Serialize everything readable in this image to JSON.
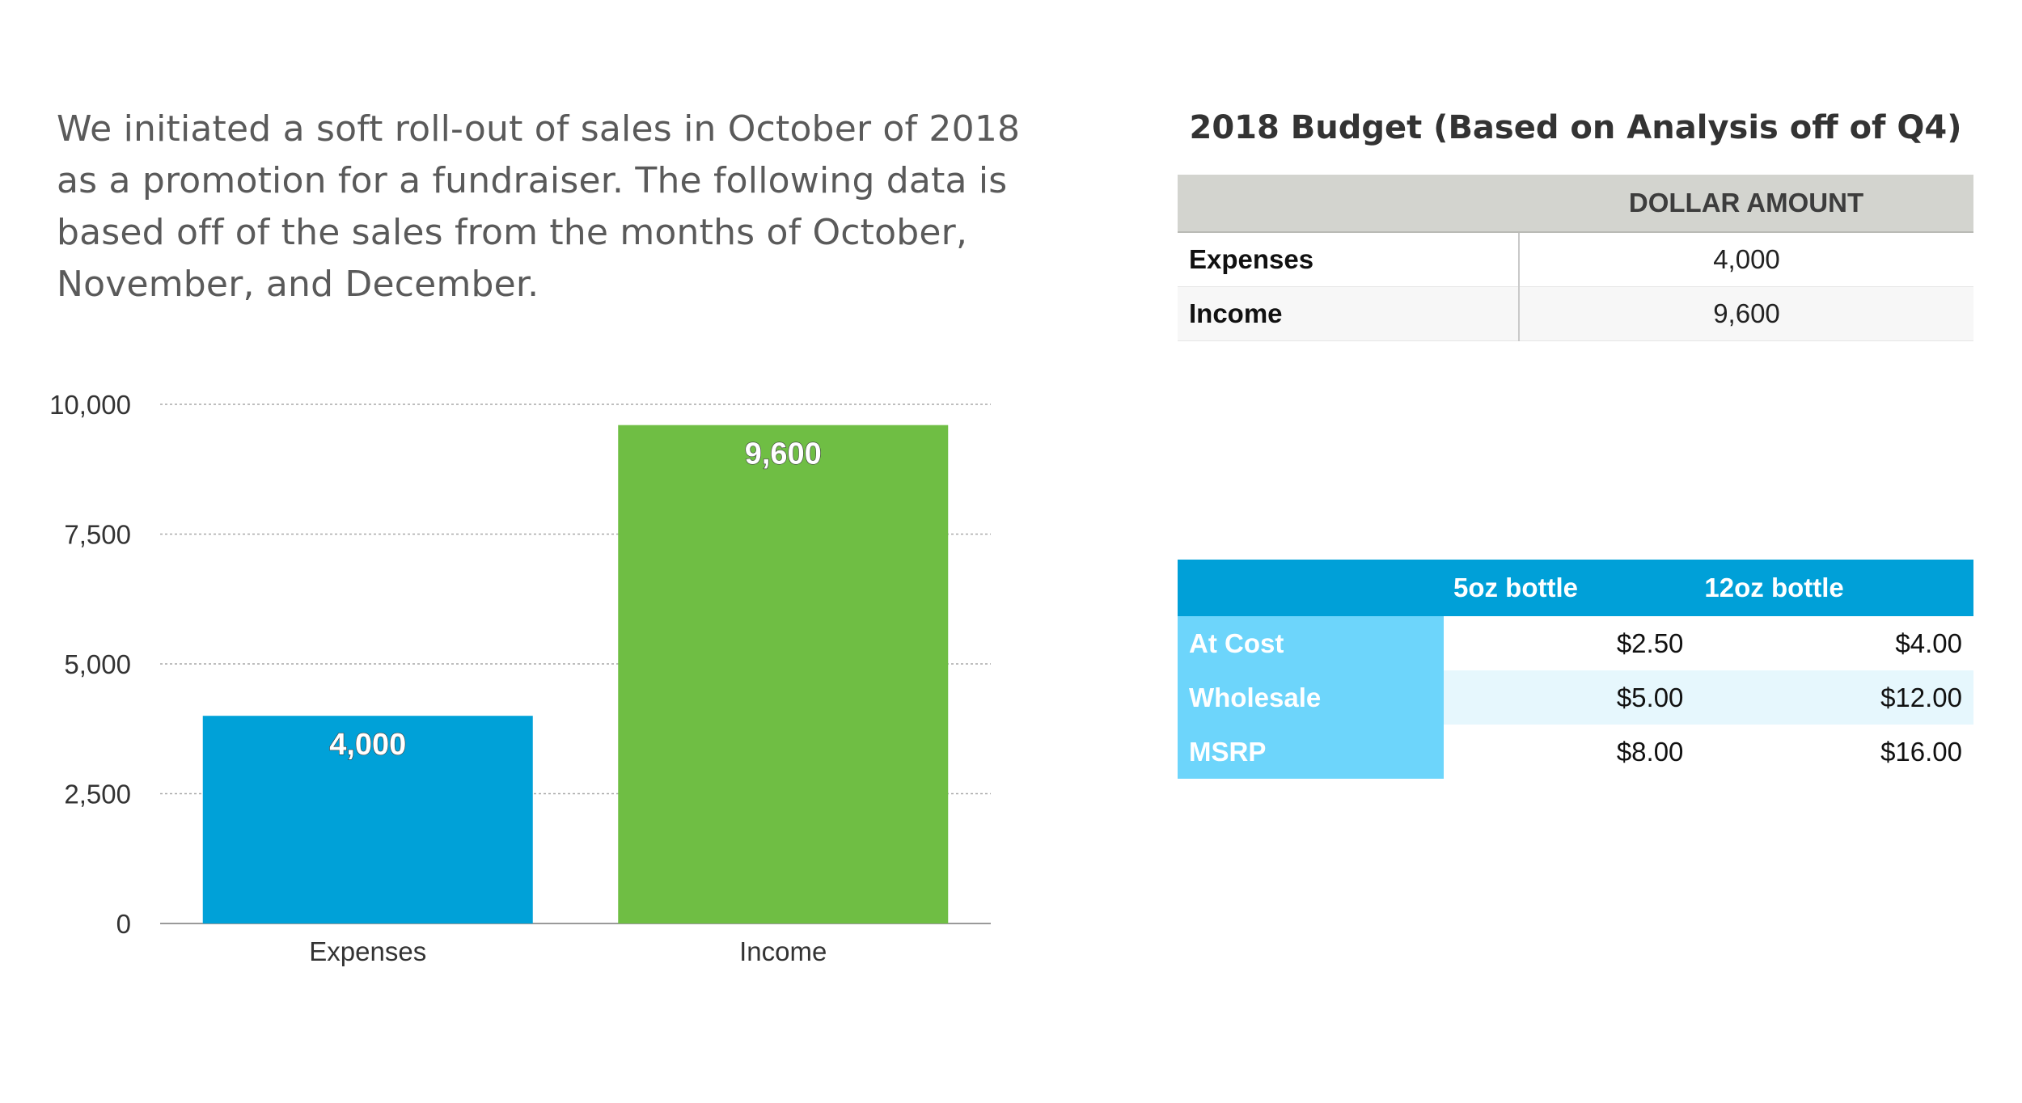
{
  "intro_text": "We initiated a soft roll-out of sales in October of 2018 as a promotion for a fundraiser. The following data is based off of the sales from the months of October, November, and December.",
  "chart_data": {
    "type": "bar",
    "categories": [
      "Expenses",
      "Income"
    ],
    "values": [
      4000,
      9600
    ],
    "value_labels": [
      "4,000",
      "9,600"
    ],
    "colors": [
      "#00a1d8",
      "#6fbe44"
    ],
    "ylim": [
      0,
      10000
    ],
    "yticks": [
      0,
      2500,
      5000,
      7500,
      10000
    ],
    "ytick_labels": [
      "0",
      "2,500",
      "5,000",
      "7,500",
      "10,000"
    ],
    "grid": true,
    "title": "",
    "xlabel": "",
    "ylabel": ""
  },
  "budget_table": {
    "title": "2018 Budget (Based on Analysis off of Q4)",
    "header": [
      "",
      "DOLLAR AMOUNT"
    ],
    "rows": [
      {
        "label": "Expenses",
        "value": "4,000"
      },
      {
        "label": "Income",
        "value": "9,600"
      }
    ]
  },
  "price_table": {
    "header": [
      "",
      "5oz bottle",
      "12oz bottle"
    ],
    "rows": [
      {
        "label": "At Cost",
        "oz5": "$2.50",
        "oz12": "$4.00"
      },
      {
        "label": "Wholesale",
        "oz5": "$5.00",
        "oz12": "$12.00"
      },
      {
        "label": "MSRP",
        "oz5": "$8.00",
        "oz12": "$16.00"
      }
    ]
  }
}
